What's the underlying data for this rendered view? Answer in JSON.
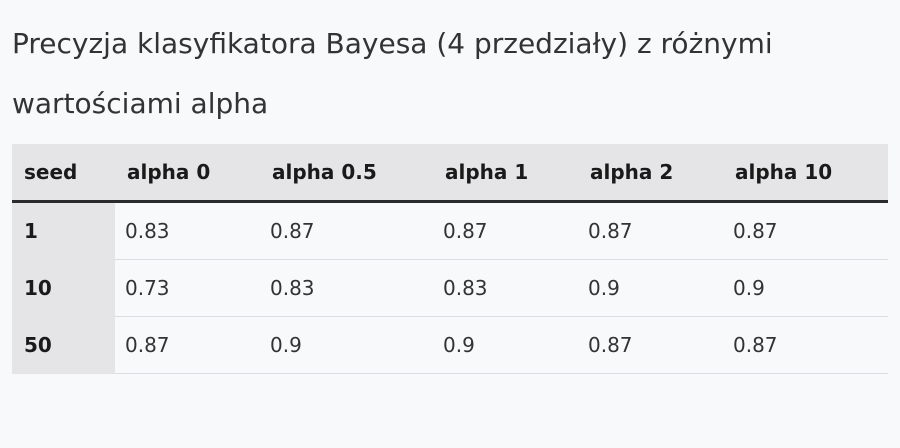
{
  "title": "Precyzja klasyfikatora Bayesa (4 przedziały) z różnymi wartościami alpha",
  "table": {
    "headers": [
      "seed",
      "alpha 0",
      "alpha 0.5",
      "alpha 1",
      "alpha 2",
      "alpha 10"
    ],
    "rows": [
      [
        "1",
        "0.83",
        "0.87",
        "0.87",
        "0.87",
        "0.87"
      ],
      [
        "10",
        "0.73",
        "0.83",
        "0.83",
        "0.9",
        "0.9"
      ],
      [
        "50",
        "0.87",
        "0.9",
        "0.9",
        "0.87",
        "0.87"
      ]
    ]
  },
  "colors": {
    "background": "#f8f9fb",
    "header_background": "#e5e5e8",
    "header_rule": "#2b2b2b",
    "row_divider": "#dcdde0"
  }
}
